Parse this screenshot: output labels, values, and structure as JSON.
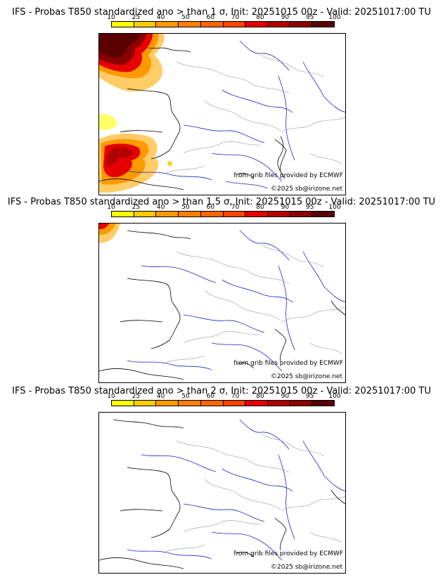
{
  "colorbar": {
    "ticks": [
      "10",
      "25",
      "40",
      "50",
      "60",
      "70",
      "80",
      "90",
      "95",
      "100"
    ],
    "colors": [
      "#ffff00",
      "#ffcc00",
      "#ff9900",
      "#ff8000",
      "#ff6600",
      "#ff4400",
      "#e60000",
      "#b30000",
      "#8c0000",
      "#5a0000"
    ]
  },
  "colors": {
    "rivers": "#2222cc",
    "borders": "#999999",
    "coast": "#000000"
  },
  "panels": [
    {
      "title": "IFS - Probas T850  standardized ano > than 1 σ, Init: 20251015 00z - Valid: 20251017:00 TU",
      "credit_grib": "from grib files provided by ECMWF",
      "credit_copy": "©2025 sb@irizone.net"
    },
    {
      "title": "IFS - Probas T850  standardized ano > than 1.5 σ, Init: 20251015 00z - Valid: 20251017:00 TU",
      "credit_grib": "from grib files provided by ECMWF",
      "credit_copy": "©2025 sb@irizone.net"
    },
    {
      "title": "IFS - Probas T850  standardized ano > than 2 σ, Init: 20251015 00z - Valid: 20251017:00 TU",
      "credit_grib": "from grib files provided by ECMWF",
      "credit_copy": "©2025 sb@irizone.net"
    }
  ]
}
